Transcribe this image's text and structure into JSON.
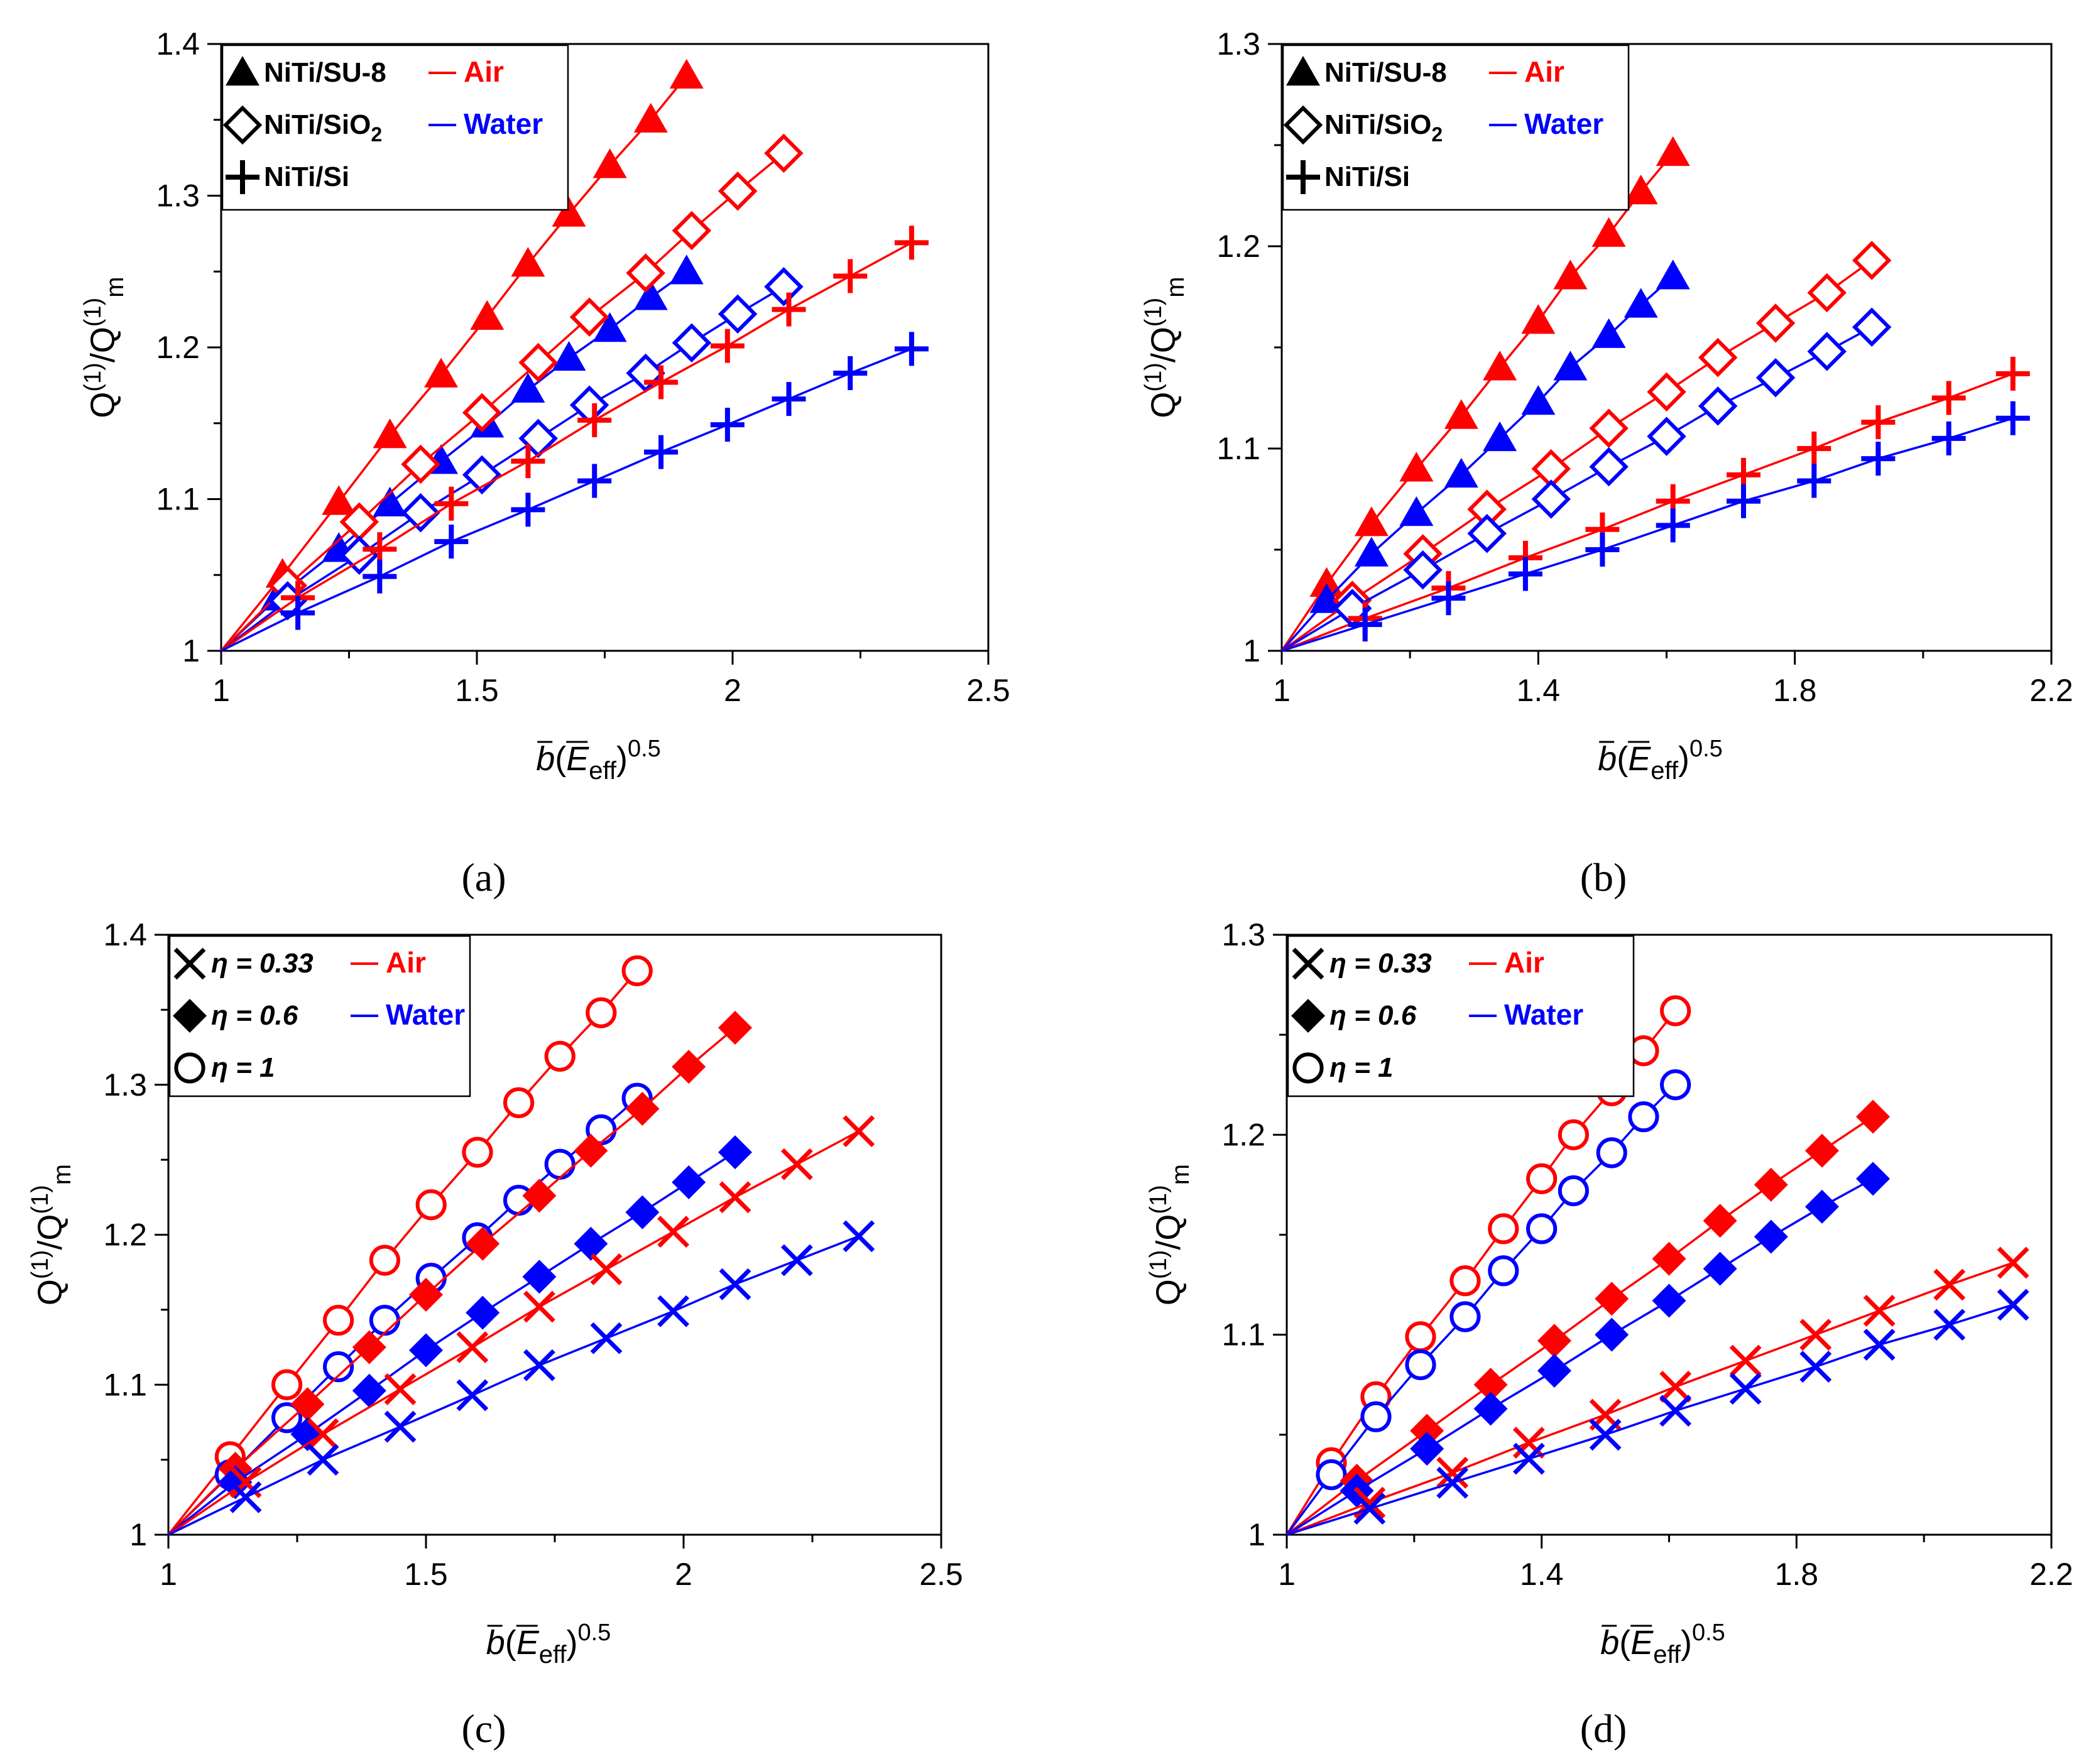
{
  "colors": {
    "air": "#ff0000",
    "water": "#0000ff",
    "axis": "#000000"
  },
  "xlabel": {
    "b": "b",
    "open": "(",
    "E": "E",
    "eff": "eff",
    "close": ")",
    "exp": "0.5"
  },
  "ylabel": {
    "Q1": "Q",
    "sup1": "(1)",
    "slash": "/Q",
    "sup2": "(1)",
    "m": "m"
  },
  "chart_data": [
    {
      "panel": "(a)",
      "type": "line",
      "xlim": [
        1,
        2.5
      ],
      "ylim": [
        1,
        1.4
      ],
      "xticks": [
        "1",
        "1.5",
        "2",
        "2.5"
      ],
      "yticks": [
        "1",
        "1.1",
        "1.2",
        "1.3",
        "1.4"
      ],
      "xminor": [
        1.25,
        1.75,
        2.25
      ],
      "yminor": [
        1.05,
        1.15,
        1.25,
        1.35
      ],
      "legend": {
        "rows": [
          {
            "marker": "triangle",
            "label": "NiTi/SU-8",
            "series": "Air"
          },
          {
            "marker": "diamond",
            "label": "NiTi/SiO",
            "sub": "2",
            "series": "Water"
          },
          {
            "marker": "plus",
            "label": "NiTi/Si"
          }
        ],
        "position": "top-left"
      },
      "series": [
        {
          "name": "NiTi/SU-8 Air",
          "marker": "triangle",
          "color": "air",
          "x": [
            1,
            1.12,
            1.23,
            1.33,
            1.43,
            1.52,
            1.6,
            1.68,
            1.76,
            1.84,
            1.91
          ],
          "y": [
            1,
            1.05,
            1.098,
            1.142,
            1.182,
            1.22,
            1.255,
            1.288,
            1.32,
            1.35,
            1.379
          ]
        },
        {
          "name": "NiTi/SU-8 Water",
          "marker": "triangle",
          "color": "water",
          "x": [
            1,
            1.11,
            1.23,
            1.33,
            1.43,
            1.52,
            1.6,
            1.68,
            1.76,
            1.84,
            1.91
          ],
          "y": [
            1,
            1.035,
            1.067,
            1.097,
            1.125,
            1.149,
            1.172,
            1.193,
            1.212,
            1.233,
            1.25
          ]
        },
        {
          "name": "NiTi/SiO2 Air",
          "marker": "diamond",
          "color": "air",
          "x": [
            1,
            1.13,
            1.27,
            1.39,
            1.51,
            1.62,
            1.72,
            1.83,
            1.92,
            2.01,
            2.1
          ],
          "y": [
            1,
            1.043,
            1.085,
            1.123,
            1.157,
            1.19,
            1.22,
            1.249,
            1.277,
            1.303,
            1.328
          ]
        },
        {
          "name": "NiTi/SiO2 Water",
          "marker": "diamond",
          "color": "water",
          "x": [
            1,
            1.13,
            1.27,
            1.39,
            1.51,
            1.62,
            1.72,
            1.83,
            1.92,
            2.01,
            2.1
          ],
          "y": [
            1,
            1.033,
            1.063,
            1.091,
            1.116,
            1.14,
            1.162,
            1.183,
            1.203,
            1.222,
            1.24
          ]
        },
        {
          "name": "NiTi/Si Air",
          "marker": "plus",
          "color": "air",
          "x": [
            1,
            1.15,
            1.31,
            1.45,
            1.6,
            1.73,
            1.86,
            1.99,
            2.11,
            2.23,
            2.35
          ],
          "y": [
            1,
            1.035,
            1.067,
            1.097,
            1.125,
            1.152,
            1.177,
            1.201,
            1.225,
            1.247,
            1.269
          ]
        },
        {
          "name": "NiTi/Si Water",
          "marker": "plus",
          "color": "water",
          "x": [
            1,
            1.15,
            1.31,
            1.45,
            1.6,
            1.73,
            1.86,
            1.99,
            2.11,
            2.23,
            2.35
          ],
          "y": [
            1,
            1.025,
            1.049,
            1.072,
            1.093,
            1.112,
            1.131,
            1.149,
            1.166,
            1.183,
            1.199
          ]
        }
      ]
    },
    {
      "panel": "(b)",
      "type": "line",
      "xlim": [
        1,
        2.2
      ],
      "ylim": [
        1,
        1.3
      ],
      "xticks": [
        "1",
        "1.4",
        "1.8",
        "2.2"
      ],
      "yticks": [
        "1",
        "1.1",
        "1.2",
        "1.3"
      ],
      "xminor": [
        1.2,
        1.6,
        2.0
      ],
      "yminor": [
        1.05,
        1.15,
        1.25
      ],
      "legend": {
        "rows": [
          {
            "marker": "triangle",
            "label": "NiTi/SU-8",
            "series": "Air"
          },
          {
            "marker": "diamond",
            "label": "NiTi/SiO",
            "sub": "2",
            "series": "Water"
          },
          {
            "marker": "plus",
            "label": "NiTi/Si"
          }
        ],
        "position": "top-left"
      },
      "series": [
        {
          "name": "NiTi/SU-8 Air",
          "marker": "triangle",
          "color": "air",
          "x": [
            1,
            1.07,
            1.14,
            1.21,
            1.28,
            1.34,
            1.4,
            1.45,
            1.51,
            1.56,
            1.61
          ],
          "y": [
            1,
            1.033,
            1.063,
            1.09,
            1.116,
            1.14,
            1.163,
            1.185,
            1.206,
            1.227,
            1.246
          ]
        },
        {
          "name": "NiTi/SU-8 Water",
          "marker": "triangle",
          "color": "water",
          "x": [
            1,
            1.07,
            1.14,
            1.21,
            1.28,
            1.34,
            1.4,
            1.45,
            1.51,
            1.56,
            1.61
          ],
          "y": [
            1,
            1.025,
            1.048,
            1.068,
            1.087,
            1.105,
            1.123,
            1.14,
            1.156,
            1.171,
            1.185
          ]
        },
        {
          "name": "NiTi/SiO2 Air",
          "marker": "diamond",
          "color": "air",
          "x": [
            1,
            1.11,
            1.22,
            1.32,
            1.42,
            1.51,
            1.6,
            1.68,
            1.77,
            1.85,
            1.92
          ],
          "y": [
            1,
            1.025,
            1.048,
            1.07,
            1.09,
            1.11,
            1.128,
            1.145,
            1.162,
            1.177,
            1.193
          ]
        },
        {
          "name": "NiTi/SiO2 Water",
          "marker": "diamond",
          "color": "water",
          "x": [
            1,
            1.11,
            1.22,
            1.32,
            1.42,
            1.51,
            1.6,
            1.68,
            1.77,
            1.85,
            1.92
          ],
          "y": [
            1,
            1.021,
            1.04,
            1.058,
            1.075,
            1.091,
            1.106,
            1.121,
            1.135,
            1.148,
            1.16
          ]
        },
        {
          "name": "NiTi/Si Air",
          "marker": "plus",
          "color": "air",
          "x": [
            1,
            1.13,
            1.26,
            1.38,
            1.5,
            1.61,
            1.72,
            1.83,
            1.93,
            2.04,
            2.14
          ],
          "y": [
            1,
            1.016,
            1.031,
            1.046,
            1.06,
            1.074,
            1.087,
            1.1,
            1.113,
            1.125,
            1.137
          ]
        },
        {
          "name": "NiTi/Si Water",
          "marker": "plus",
          "color": "water",
          "x": [
            1,
            1.13,
            1.26,
            1.38,
            1.5,
            1.61,
            1.72,
            1.83,
            1.93,
            2.04,
            2.14
          ],
          "y": [
            1,
            1.013,
            1.026,
            1.038,
            1.05,
            1.062,
            1.074,
            1.084,
            1.095,
            1.105,
            1.115
          ]
        }
      ]
    },
    {
      "panel": "(c)",
      "type": "line",
      "xlim": [
        1,
        2.5
      ],
      "ylim": [
        1,
        1.4
      ],
      "xticks": [
        "1",
        "1.5",
        "2",
        "2.5"
      ],
      "yticks": [
        "1",
        "1.1",
        "1.2",
        "1.3",
        "1.4"
      ],
      "xminor": [
        1.25,
        1.75,
        2.25
      ],
      "yminor": [
        1.05,
        1.15,
        1.25,
        1.35
      ],
      "legend": {
        "rows": [
          {
            "marker": "cross",
            "label": "η = 0.33",
            "series": "Air"
          },
          {
            "marker": "filled-diamond",
            "label": "η = 0.6",
            "series": "Water"
          },
          {
            "marker": "circle",
            "label": "η = 1"
          }
        ],
        "position": "top-left"
      },
      "series": [
        {
          "name": "η = 1 Air",
          "marker": "circle",
          "color": "air",
          "x": [
            1,
            1.12,
            1.23,
            1.33,
            1.42,
            1.51,
            1.6,
            1.68,
            1.76,
            1.84,
            1.91
          ],
          "y": [
            1,
            1.052,
            1.1,
            1.143,
            1.183,
            1.22,
            1.255,
            1.288,
            1.319,
            1.348,
            1.376
          ]
        },
        {
          "name": "η = 1 Water",
          "marker": "circle",
          "color": "water",
          "x": [
            1,
            1.12,
            1.23,
            1.33,
            1.42,
            1.51,
            1.6,
            1.68,
            1.76,
            1.84,
            1.91
          ],
          "y": [
            1,
            1.04,
            1.078,
            1.112,
            1.143,
            1.171,
            1.198,
            1.223,
            1.247,
            1.27,
            1.291
          ]
        },
        {
          "name": "η = 0.6 Air",
          "marker": "filled-diamond",
          "color": "air",
          "x": [
            1,
            1.13,
            1.27,
            1.39,
            1.5,
            1.61,
            1.72,
            1.82,
            1.92,
            2.01,
            2.1
          ],
          "y": [
            1,
            1.044,
            1.087,
            1.125,
            1.16,
            1.194,
            1.226,
            1.256,
            1.284,
            1.312,
            1.338
          ]
        },
        {
          "name": "η = 0.6 Water",
          "marker": "filled-diamond",
          "color": "water",
          "x": [
            1,
            1.13,
            1.27,
            1.39,
            1.5,
            1.61,
            1.72,
            1.82,
            1.92,
            2.01,
            2.1
          ],
          "y": [
            1,
            1.035,
            1.067,
            1.096,
            1.123,
            1.148,
            1.172,
            1.194,
            1.215,
            1.235,
            1.255
          ]
        },
        {
          "name": "η = 0.33 Air",
          "marker": "cross",
          "color": "air",
          "x": [
            1,
            1.15,
            1.3,
            1.45,
            1.59,
            1.72,
            1.85,
            1.98,
            2.1,
            2.22,
            2.34
          ],
          "y": [
            1,
            1.035,
            1.067,
            1.097,
            1.125,
            1.152,
            1.177,
            1.202,
            1.225,
            1.247,
            1.269
          ]
        },
        {
          "name": "η = 0.33 Water",
          "marker": "cross",
          "color": "water",
          "x": [
            1,
            1.15,
            1.3,
            1.45,
            1.59,
            1.72,
            1.85,
            1.98,
            2.1,
            2.22,
            2.34
          ],
          "y": [
            1,
            1.025,
            1.05,
            1.072,
            1.093,
            1.113,
            1.131,
            1.149,
            1.167,
            1.183,
            1.199
          ]
        }
      ]
    },
    {
      "panel": "(d)",
      "type": "line",
      "xlim": [
        1,
        2.2
      ],
      "ylim": [
        1,
        1.3
      ],
      "xticks": [
        "1",
        "1.4",
        "1.8",
        "2.2"
      ],
      "yticks": [
        "1",
        "1.1",
        "1.2",
        "1.3"
      ],
      "xminor": [
        1.2,
        1.6,
        2.0
      ],
      "yminor": [
        1.05,
        1.15,
        1.25
      ],
      "legend": {
        "rows": [
          {
            "marker": "cross",
            "label": "η = 0.33",
            "series": "Air"
          },
          {
            "marker": "filled-diamond",
            "label": "η = 0.6",
            "series": "Water"
          },
          {
            "marker": "circle",
            "label": "η = 1"
          }
        ],
        "position": "top-left"
      },
      "series": [
        {
          "name": "η = 1 Air",
          "marker": "circle",
          "color": "air",
          "x": [
            1,
            1.07,
            1.14,
            1.21,
            1.28,
            1.34,
            1.4,
            1.45,
            1.51,
            1.56,
            1.61
          ],
          "y": [
            1,
            1.036,
            1.069,
            1.099,
            1.127,
            1.153,
            1.178,
            1.2,
            1.222,
            1.242,
            1.262
          ]
        },
        {
          "name": "η = 1 Water",
          "marker": "circle",
          "color": "water",
          "x": [
            1,
            1.07,
            1.14,
            1.21,
            1.28,
            1.34,
            1.4,
            1.45,
            1.51,
            1.56,
            1.61
          ],
          "y": [
            1,
            1.03,
            1.059,
            1.085,
            1.109,
            1.132,
            1.153,
            1.172,
            1.191,
            1.209,
            1.225
          ]
        },
        {
          "name": "η = 0.6 Air",
          "marker": "filled-diamond",
          "color": "air",
          "x": [
            1,
            1.11,
            1.22,
            1.32,
            1.42,
            1.51,
            1.6,
            1.68,
            1.76,
            1.84,
            1.92
          ],
          "y": [
            1,
            1.027,
            1.052,
            1.075,
            1.097,
            1.118,
            1.138,
            1.157,
            1.175,
            1.192,
            1.209
          ]
        },
        {
          "name": "η = 0.6 Water",
          "marker": "filled-diamond",
          "color": "water",
          "x": [
            1,
            1.11,
            1.22,
            1.32,
            1.42,
            1.51,
            1.6,
            1.68,
            1.76,
            1.84,
            1.92
          ],
          "y": [
            1,
            1.022,
            1.043,
            1.063,
            1.082,
            1.1,
            1.117,
            1.133,
            1.149,
            1.164,
            1.178
          ]
        },
        {
          "name": "η = 0.33 Air",
          "marker": "cross",
          "color": "air",
          "x": [
            1,
            1.13,
            1.26,
            1.38,
            1.5,
            1.61,
            1.72,
            1.83,
            1.93,
            2.04,
            2.14
          ],
          "y": [
            1,
            1.016,
            1.031,
            1.046,
            1.06,
            1.074,
            1.087,
            1.1,
            1.112,
            1.125,
            1.136
          ]
        },
        {
          "name": "η = 0.33 Water",
          "marker": "cross",
          "color": "water",
          "x": [
            1,
            1.13,
            1.26,
            1.38,
            1.5,
            1.61,
            1.72,
            1.83,
            1.93,
            2.04,
            2.14
          ],
          "y": [
            1,
            1.013,
            1.026,
            1.038,
            1.05,
            1.062,
            1.073,
            1.084,
            1.095,
            1.105,
            1.115
          ]
        }
      ]
    }
  ]
}
